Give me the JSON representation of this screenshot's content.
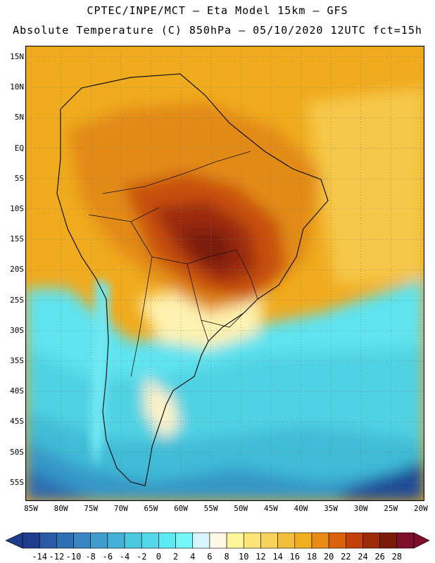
{
  "header": {
    "line1": "CPTEC/INPE/MCT –  Eta Model 15km – GFS",
    "line2": "Absolute Temperature (C) 850hPa – 05/10/2020 12UTC fct=15h"
  },
  "map": {
    "region": "South America",
    "lat_labels": [
      "15N",
      "10N",
      "5N",
      "EQ",
      "5S",
      "10S",
      "15S",
      "20S",
      "25S",
      "30S",
      "35S",
      "40S",
      "45S",
      "50S",
      "55S"
    ],
    "lon_labels": [
      "85W",
      "80W",
      "75W",
      "70W",
      "65W",
      "60W",
      "55W",
      "50W",
      "45W",
      "40W",
      "35W",
      "30W",
      "25W",
      "20W"
    ]
  },
  "colorbar": {
    "labels": [
      "-14",
      "-12",
      "-10",
      "-8",
      "-6",
      "-4",
      "-2",
      "0",
      "2",
      "4",
      "6",
      "8",
      "10",
      "12",
      "14",
      "16",
      "18",
      "20",
      "22",
      "24",
      "26",
      "28"
    ],
    "colors": [
      "#1f3c8c",
      "#2a5aa5",
      "#2f6fb4",
      "#3a86c2",
      "#3f9ccd",
      "#45b1d6",
      "#4cc8e0",
      "#55d7ea",
      "#5ee9f2",
      "#75f6f8",
      "#d7f6fb",
      "#fff8e6",
      "#fff49a",
      "#fbe577",
      "#f8d35a",
      "#f2be3d",
      "#f1ad20",
      "#e88a14",
      "#d9600c",
      "#c14007",
      "#9c2a07",
      "#7a1a0a",
      "#7e0f2a"
    ]
  }
}
